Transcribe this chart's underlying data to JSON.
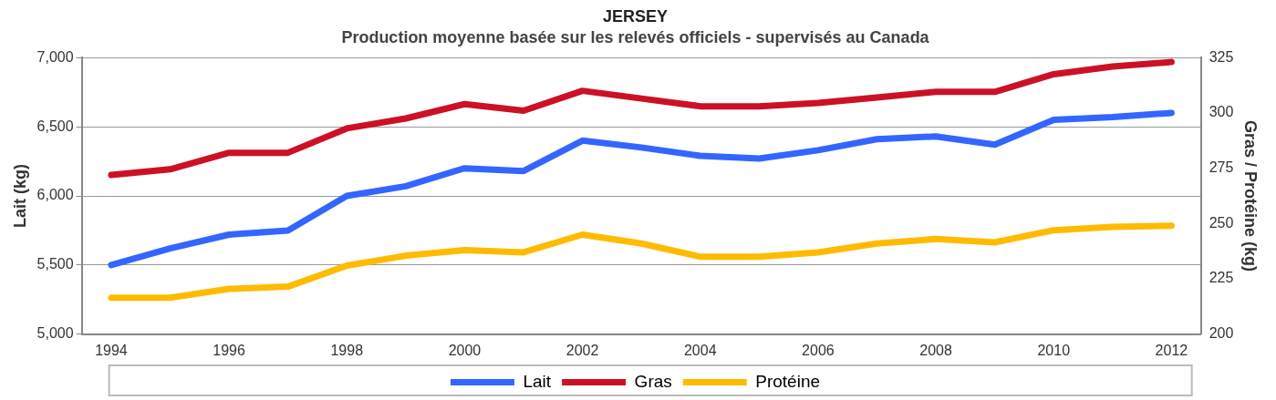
{
  "chart_data": {
    "type": "line",
    "title": "JERSEY",
    "subtitle": "Production moyenne basée sur les relevés officiels - supervisés au Canada",
    "ylabel": "Lait (kg)",
    "y2label": "Gras / Protéine (kg)",
    "categories": [
      "1994",
      null,
      "1996",
      null,
      "1998",
      null,
      "2000",
      null,
      "2002",
      null,
      "2004",
      null,
      "2006",
      null,
      "2008",
      null,
      "2010",
      null,
      "2012"
    ],
    "series": [
      {
        "name": "Lait",
        "color": "#3366ff",
        "values": [
          5500,
          5620,
          5720,
          5750,
          6000,
          6070,
          6200,
          6180,
          6400,
          6350,
          6290,
          6270,
          6330,
          6410,
          6430,
          6370,
          6550,
          6570,
          6600
        ]
      },
      {
        "name": "Gras",
        "color": "#cc1126",
        "axis": "y2",
        "values": [
          272,
          274.5,
          282,
          282,
          293,
          297.5,
          304,
          301,
          310,
          306.5,
          303,
          303,
          304.5,
          307,
          309.5,
          309.5,
          317.5,
          321,
          323
        ]
      },
      {
        "name": "Protéine",
        "color": "#ffbb00",
        "axis": "y2",
        "values": [
          216.5,
          216.5,
          220.5,
          221.5,
          231,
          235.5,
          238,
          237,
          245,
          241,
          235,
          235,
          237,
          241,
          243,
          241.5,
          247,
          248.5,
          249
        ]
      }
    ],
    "ylim": [
      5000,
      7000
    ],
    "yticks": [
      {
        "value": 5000,
        "label": "5,000"
      },
      {
        "value": 5500,
        "label": "5,500"
      },
      {
        "value": 6000,
        "label": "6,000"
      },
      {
        "value": 6500,
        "label": "6,500"
      },
      {
        "value": 7000,
        "label": "7,000"
      }
    ],
    "y2lim": [
      200,
      325
    ],
    "y2ticks": [
      200,
      225,
      250,
      275,
      300,
      325
    ],
    "grid": "y",
    "legend": "bottom",
    "marker": "none",
    "line_style": "solid"
  }
}
